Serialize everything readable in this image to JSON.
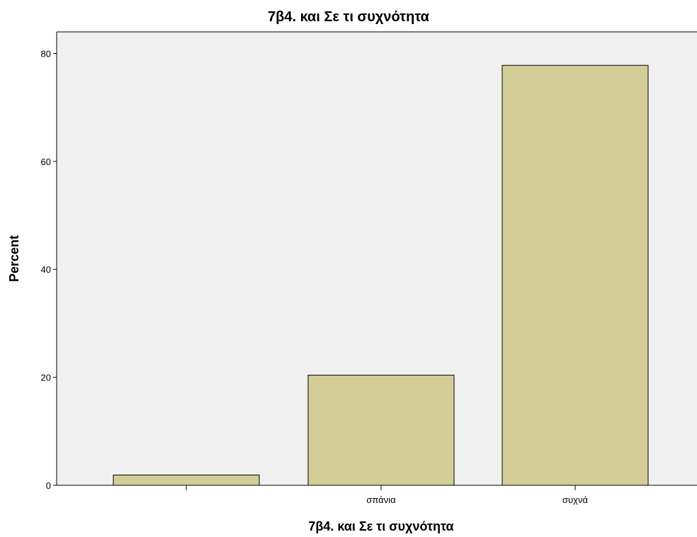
{
  "chart_data": {
    "type": "bar",
    "title": "7β4. και Σε τι συχνότητα",
    "xlabel": "7β4. και Σε τι συχνότητα",
    "ylabel": "Percent",
    "categories": [
      "",
      "σπάνια",
      "συχνά"
    ],
    "values": [
      1.9,
      20.4,
      77.8
    ],
    "ylim": [
      0,
      84
    ],
    "yticks": [
      0,
      20,
      40,
      60,
      80
    ],
    "grid": false,
    "legend": "none",
    "colors": {
      "plot_background": "#f0f0f0",
      "bar_fill": "#d3ce97",
      "bar_stroke": "#000000"
    }
  }
}
